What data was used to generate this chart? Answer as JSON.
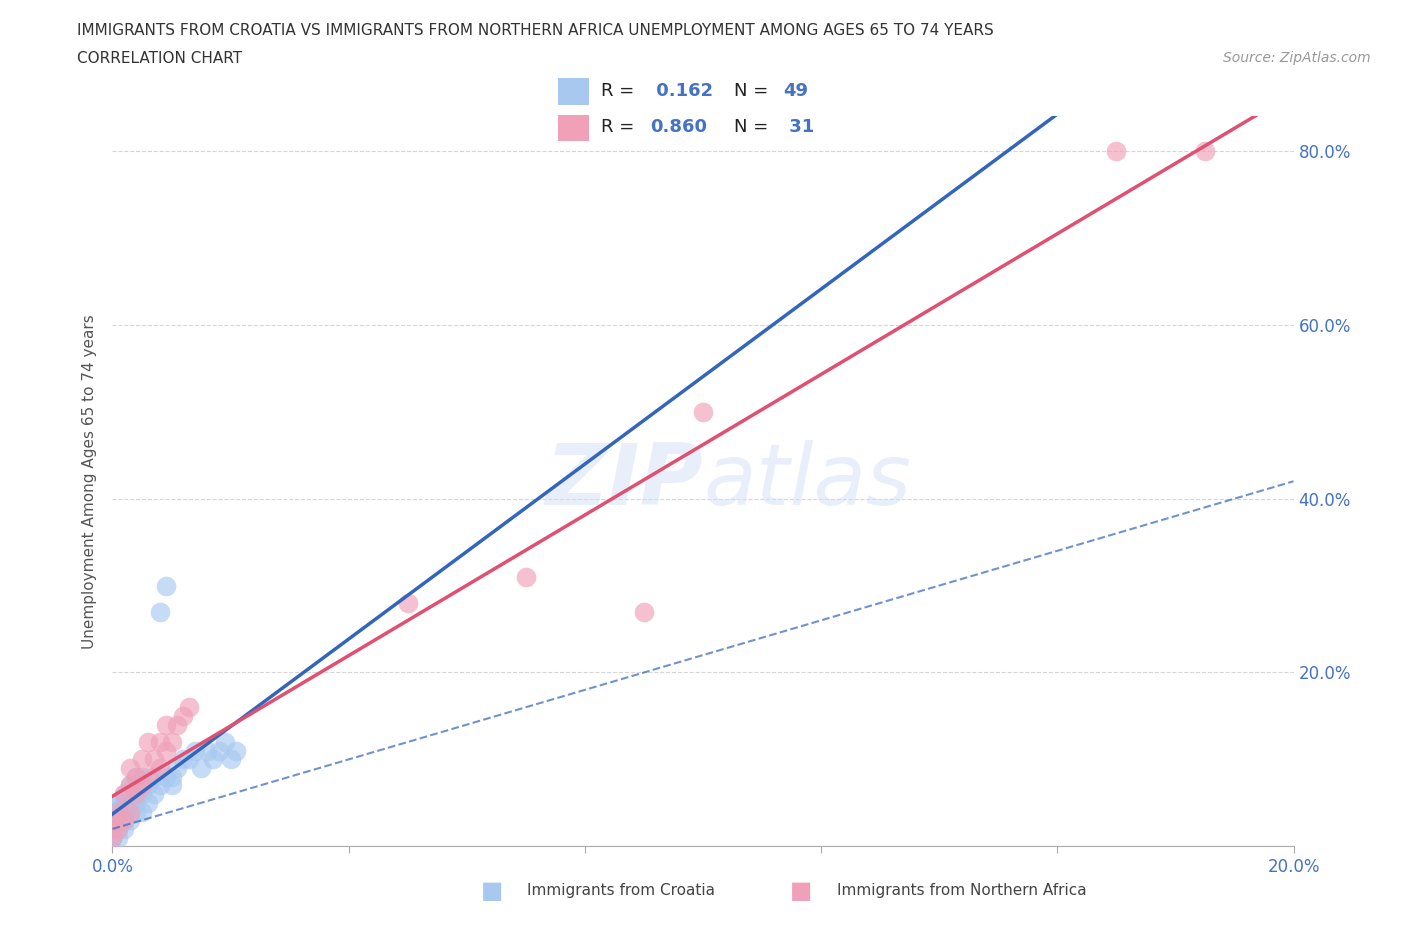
{
  "title_line1": "IMMIGRANTS FROM CROATIA VS IMMIGRANTS FROM NORTHERN AFRICA UNEMPLOYMENT AMONG AGES 65 TO 74 YEARS",
  "title_line2": "CORRELATION CHART",
  "source_text": "Source: ZipAtlas.com",
  "ylabel": "Unemployment Among Ages 65 to 74 years",
  "watermark": "ZIPatlas",
  "xlim": [
    0.0,
    0.2
  ],
  "ylim": [
    0.0,
    0.84
  ],
  "croatia_R": 0.162,
  "croatia_N": 49,
  "croatia_color": "#a8c8f0",
  "croatia_line_color": "#3366bb",
  "northern_africa_R": 0.86,
  "northern_africa_N": 31,
  "northern_africa_color": "#f0a0b8",
  "northern_africa_line_color": "#e05070",
  "grid_color": "#cccccc",
  "background_color": "#ffffff",
  "tick_color": "#4472c4",
  "ylabel_color": "#555555",
  "croatia_x": [
    0.0,
    0.0,
    0.0,
    0.0,
    0.0,
    0.001,
    0.001,
    0.001,
    0.001,
    0.001,
    0.001,
    0.001,
    0.002,
    0.002,
    0.002,
    0.002,
    0.002,
    0.003,
    0.003,
    0.003,
    0.003,
    0.004,
    0.004,
    0.004,
    0.004,
    0.005,
    0.005,
    0.005,
    0.006,
    0.006,
    0.007,
    0.007,
    0.008,
    0.008,
    0.009,
    0.009,
    0.01,
    0.01,
    0.011,
    0.012,
    0.013,
    0.014,
    0.015,
    0.016,
    0.017,
    0.018,
    0.019,
    0.02,
    0.021
  ],
  "croatia_y": [
    0.01,
    0.01,
    0.02,
    0.03,
    0.04,
    0.01,
    0.02,
    0.02,
    0.03,
    0.04,
    0.05,
    0.05,
    0.02,
    0.03,
    0.04,
    0.05,
    0.06,
    0.03,
    0.04,
    0.05,
    0.07,
    0.04,
    0.05,
    0.07,
    0.08,
    0.04,
    0.06,
    0.08,
    0.05,
    0.07,
    0.06,
    0.08,
    0.07,
    0.27,
    0.08,
    0.3,
    0.07,
    0.08,
    0.09,
    0.1,
    0.1,
    0.11,
    0.09,
    0.11,
    0.1,
    0.11,
    0.12,
    0.1,
    0.11
  ],
  "africa_x": [
    0.0,
    0.0,
    0.0,
    0.001,
    0.001,
    0.002,
    0.002,
    0.003,
    0.003,
    0.003,
    0.004,
    0.004,
    0.005,
    0.005,
    0.006,
    0.006,
    0.007,
    0.008,
    0.008,
    0.009,
    0.009,
    0.01,
    0.011,
    0.012,
    0.013,
    0.05,
    0.07,
    0.09,
    0.1,
    0.17,
    0.185
  ],
  "africa_y": [
    0.01,
    0.02,
    0.03,
    0.02,
    0.04,
    0.03,
    0.06,
    0.04,
    0.07,
    0.09,
    0.06,
    0.08,
    0.07,
    0.1,
    0.08,
    0.12,
    0.1,
    0.09,
    0.12,
    0.11,
    0.14,
    0.12,
    0.14,
    0.15,
    0.16,
    0.28,
    0.31,
    0.27,
    0.5,
    0.8,
    0.8
  ]
}
